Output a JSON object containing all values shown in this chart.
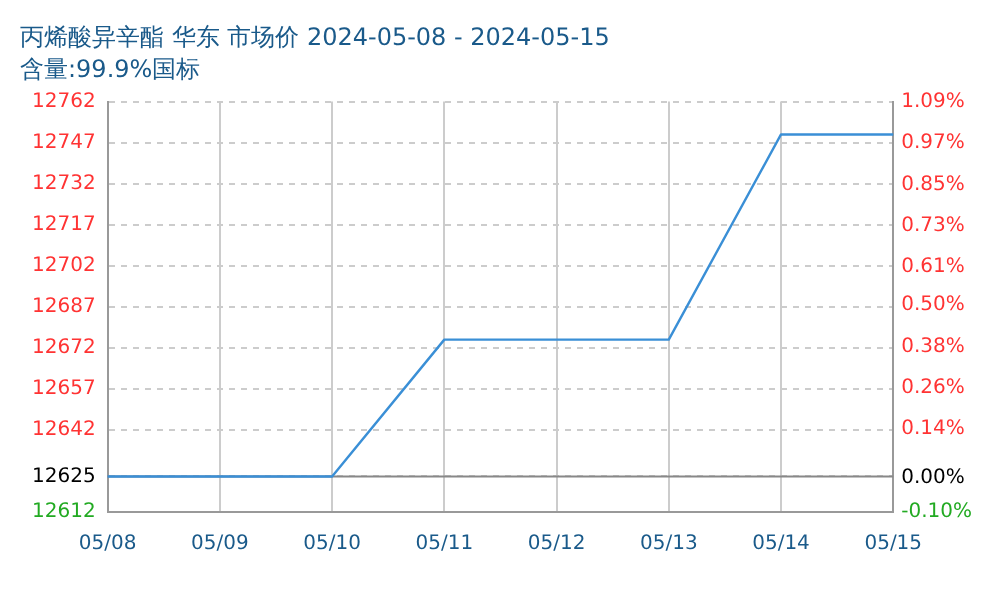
{
  "chart_data": {
    "type": "line",
    "title": "丙烯酸异辛酯 华东 市场价 2024-05-08 - 2024-05-15",
    "subtitle": "含量:99.9%国标",
    "categories": [
      "05/08",
      "05/09",
      "05/10",
      "05/11",
      "05/12",
      "05/13",
      "05/14",
      "05/15"
    ],
    "series": [
      {
        "color": "#3a8fd6",
        "values": [
          12625,
          12625,
          12625,
          12675,
          12675,
          12675,
          12750,
          12750
        ]
      }
    ],
    "ylim": [
      12612,
      12762
    ],
    "yticks": [
      12612,
      12625,
      12642,
      12657,
      12672,
      12687,
      12702,
      12717,
      12732,
      12747,
      12762
    ],
    "y2lim": [
      -0.1,
      1.09
    ],
    "y2ticks": [
      {
        "value": -0.1,
        "label": "-0.10%"
      },
      {
        "value": 0,
        "label": "0.00%"
      },
      {
        "value": 0.14,
        "label": "0.14%"
      },
      {
        "value": 0.26,
        "label": "0.26%"
      },
      {
        "value": 0.38,
        "label": "0.38%"
      },
      {
        "value": 0.5,
        "label": "0.50%"
      },
      {
        "value": 0.61,
        "label": "0.61%"
      },
      {
        "value": 0.73,
        "label": "0.73%"
      },
      {
        "value": 0.85,
        "label": "0.85%"
      },
      {
        "value": 0.97,
        "label": "0.97%"
      },
      {
        "value": 1.09,
        "label": "1.09%"
      }
    ],
    "ref_lines": [
      {
        "axis": "y",
        "value": 12625,
        "color": "#888888",
        "line_style": "solid"
      }
    ],
    "grid": true,
    "legend": false,
    "marker": "none",
    "line_style": "solid"
  }
}
